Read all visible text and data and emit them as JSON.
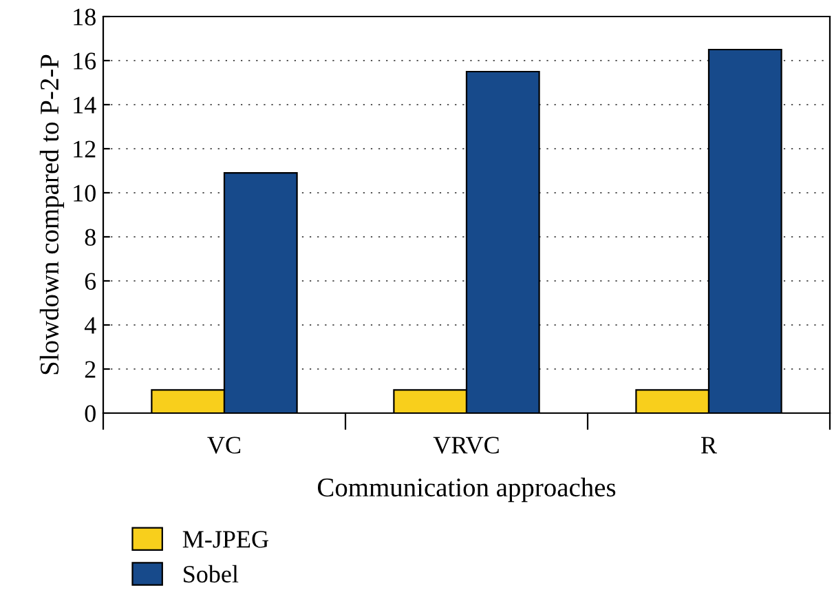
{
  "chart_data": {
    "type": "bar",
    "xlabel": "Communication approaches",
    "ylabel": "Slowdown compared to P-2-P",
    "categories": [
      "VC",
      "VRVC",
      "R"
    ],
    "series": [
      {
        "name": "M-JPEG",
        "color": "#f8cf1c",
        "values": [
          1.05,
          1.05,
          1.05
        ]
      },
      {
        "name": "Sobel",
        "color": "#174a8b",
        "values": [
          10.9,
          15.5,
          16.5
        ]
      }
    ],
    "ylim": [
      0,
      18
    ],
    "yticks": [
      0,
      2,
      4,
      6,
      8,
      10,
      12,
      14,
      16,
      18
    ],
    "grid": "y",
    "legend": "bottom left"
  }
}
